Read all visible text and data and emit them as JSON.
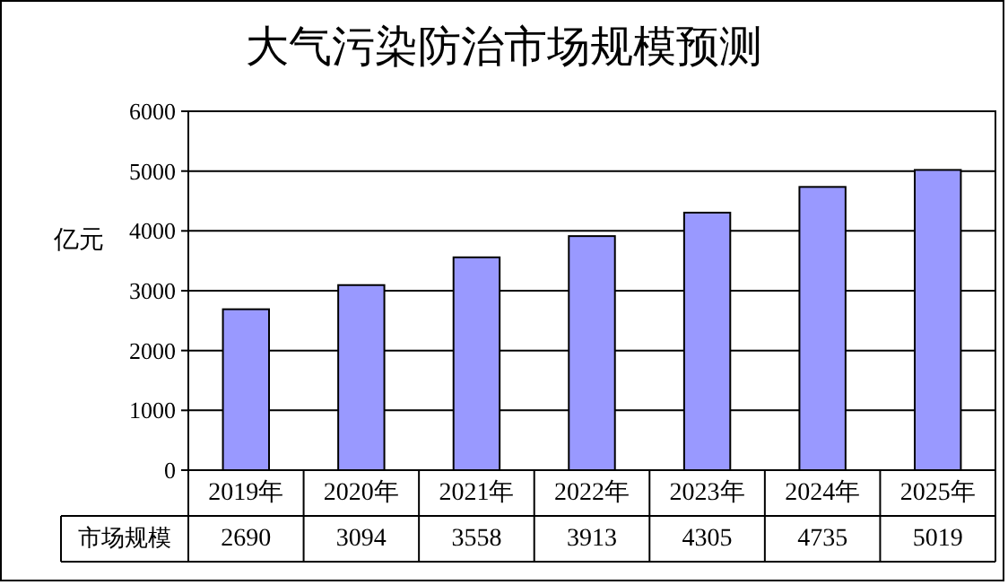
{
  "chart_data": {
    "type": "bar",
    "title": "大气污染防治市场规模预测",
    "ylabel": "亿元",
    "categories": [
      "2019年",
      "2020年",
      "2021年",
      "2022年",
      "2023年",
      "2024年",
      "2025年"
    ],
    "series": [
      {
        "name": "市场规模",
        "color": "#9999ff",
        "values": [
          2690,
          3094,
          3558,
          3913,
          4305,
          4735,
          5019
        ]
      }
    ],
    "ylim": [
      0,
      6000
    ],
    "yticks": [
      0,
      1000,
      2000,
      3000,
      4000,
      5000,
      6000
    ],
    "grid": "y",
    "data_labels": true,
    "legend": "bottom"
  }
}
